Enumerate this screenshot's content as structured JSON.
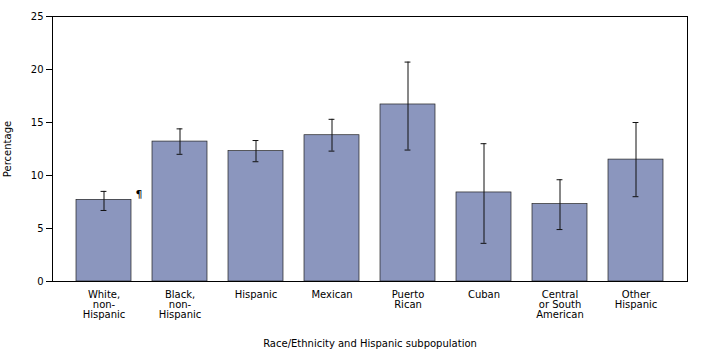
{
  "chart_data": {
    "type": "bar",
    "categories": [
      "White,\nnon-\nHispanic",
      "Black,\nnon-\nHispanic",
      "Hispanic",
      "Mexican",
      "Puerto\nRican",
      "Cuban",
      "Central\nor South\nAmerican",
      "Other\nHispanic"
    ],
    "values": [
      7.7,
      13.2,
      12.3,
      13.8,
      16.7,
      8.4,
      7.3,
      11.5
    ],
    "errors_low": [
      1.0,
      1.2,
      1.0,
      1.5,
      4.3,
      4.8,
      2.4,
      3.5
    ],
    "errors_high": [
      0.8,
      1.2,
      1.0,
      1.5,
      4.0,
      4.6,
      2.3,
      3.5
    ],
    "color": "#8b96be",
    "xlabel": "Race/Ethnicity and Hispanic subpopulation",
    "ylabel": "Percentage",
    "ylim": [
      0,
      25
    ],
    "yticks": [
      0,
      5,
      10,
      15,
      20,
      25
    ],
    "annotations": [
      {
        "text": "¶",
        "category": "White,\nnon-\nHispanic"
      }
    ],
    "grid": false
  }
}
